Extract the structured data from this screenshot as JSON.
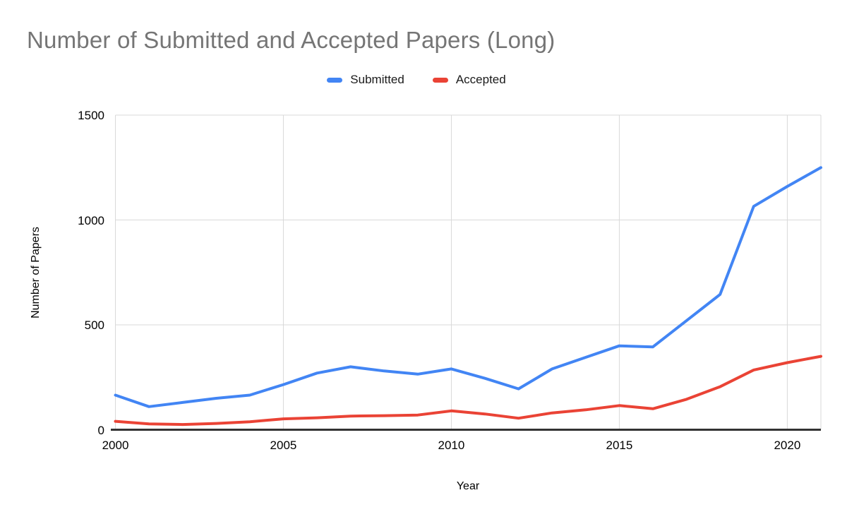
{
  "chart_data": {
    "type": "line",
    "title": "Number of Submitted and Accepted Papers (Long)",
    "xlabel": "Year",
    "ylabel": "Number of Papers",
    "x": [
      2000,
      2001,
      2002,
      2003,
      2004,
      2005,
      2006,
      2007,
      2008,
      2009,
      2010,
      2011,
      2012,
      2013,
      2014,
      2015,
      2016,
      2017,
      2018,
      2019,
      2020,
      2021
    ],
    "series": [
      {
        "name": "Submitted",
        "color": "#4285F4",
        "values": [
          165,
          110,
          130,
          150,
          165,
          215,
          270,
          300,
          280,
          265,
          290,
          245,
          195,
          290,
          345,
          400,
          395,
          520,
          645,
          1065,
          1160,
          1250
        ]
      },
      {
        "name": "Accepted",
        "color": "#EA4335",
        "values": [
          40,
          28,
          25,
          30,
          38,
          52,
          57,
          65,
          67,
          70,
          90,
          75,
          55,
          80,
          95,
          115,
          100,
          145,
          205,
          285,
          320,
          350
        ]
      }
    ],
    "xlim": [
      2000,
      2021
    ],
    "ylim": [
      0,
      1500
    ],
    "x_ticks": [
      2000,
      2005,
      2010,
      2015,
      2020
    ],
    "y_ticks": [
      0,
      500,
      1000,
      1500
    ],
    "grid": true,
    "legend_position": "top"
  },
  "colors": {
    "title_text": "#757575",
    "tick_text": "#000000",
    "gridline": "#d9d9d9",
    "axis_line": "#333333",
    "submitted": "#4285F4",
    "accepted": "#EA4335"
  }
}
